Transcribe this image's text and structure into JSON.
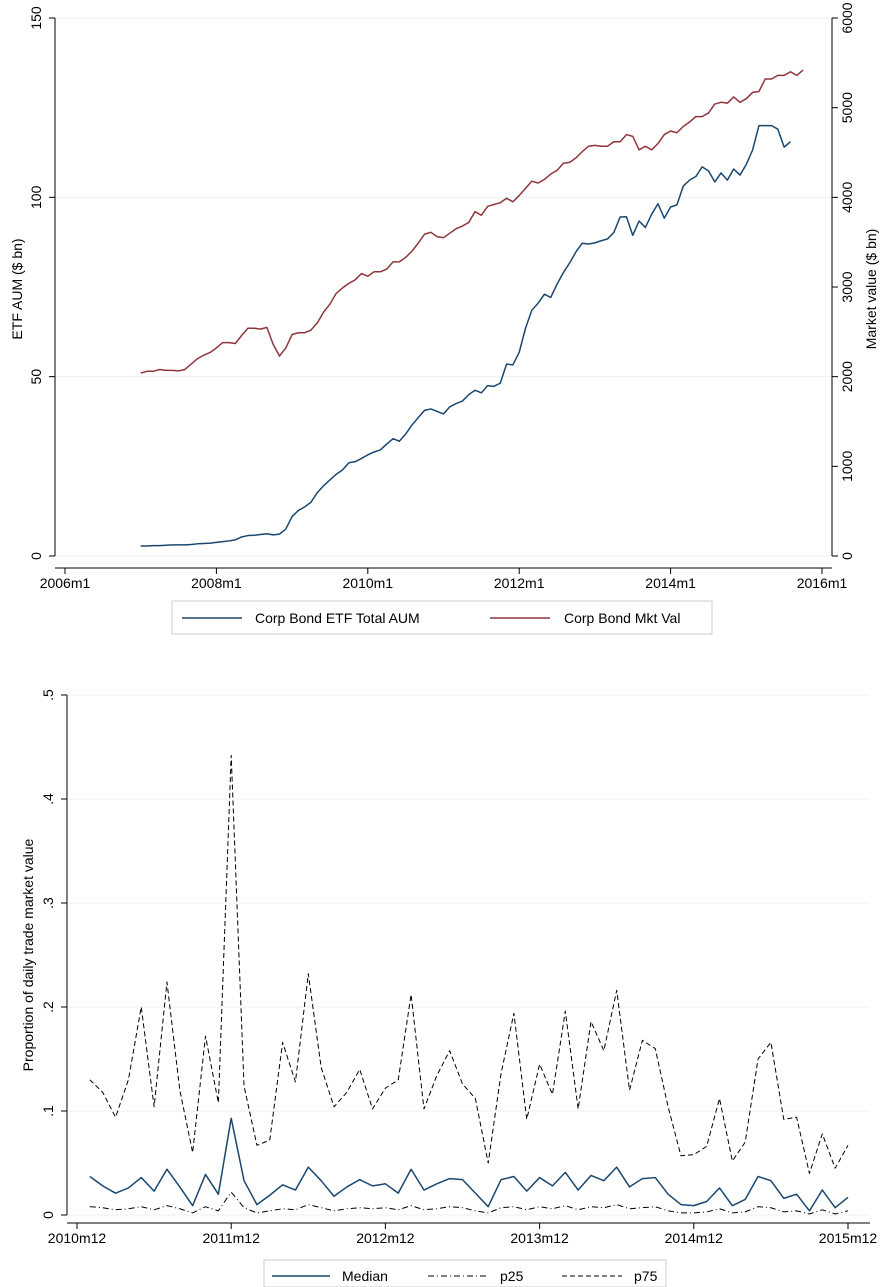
{
  "chart_data": [
    {
      "type": "line",
      "title": "",
      "xlabel": "",
      "ylabel": "ETF AUM ($ bn)",
      "y2label": "Market value ($ bn)",
      "xlim": [
        "2006m1",
        "2016m1"
      ],
      "ylim": [
        0,
        150
      ],
      "y2lim": [
        0,
        6000
      ],
      "xticks": [
        "2006m1",
        "2008m1",
        "2010m1",
        "2012m1",
        "2014m1",
        "2016m1"
      ],
      "yticks": [
        "0",
        "50",
        "100",
        "150"
      ],
      "y2ticks": [
        "0",
        "1000",
        "2000",
        "3000",
        "4000",
        "5000",
        "6000"
      ],
      "grid": true,
      "legend_position": "bottom",
      "x_start": "2007m1",
      "x_step": "1 month",
      "series": [
        {
          "name": "Corp Bond ETF Total AUM",
          "axis": "left",
          "color": "#1a476f",
          "values": [
            2.8,
            2.8,
            2.9,
            2.9,
            3.0,
            3.1,
            3.1,
            3.1,
            3.2,
            3.4,
            3.5,
            3.6,
            3.8,
            4.0,
            4.2,
            4.5,
            5.3,
            5.7,
            5.8,
            6.0,
            6.2,
            5.9,
            6.1,
            7.5,
            11.0,
            12.7,
            13.7,
            15.0,
            17.7,
            19.6,
            21.2,
            22.8,
            24.0,
            26.0,
            26.3,
            27.2,
            28.2,
            29.0,
            29.6,
            31.2,
            32.7,
            32.0,
            34.0,
            36.5,
            38.6,
            40.6,
            41.0,
            40.3,
            39.6,
            41.6,
            42.5,
            43.2,
            45.0,
            46.2,
            45.5,
            47.5,
            47.3,
            48.2,
            53.5,
            53.3,
            56.8,
            63.5,
            68.5,
            70.5,
            73.0,
            72.1,
            75.8,
            79.0,
            81.7,
            84.8,
            87.2,
            87.0,
            87.3,
            87.9,
            88.4,
            90.2,
            94.5,
            94.6,
            89.4,
            93.4,
            91.6,
            95.3,
            98.2,
            94.2,
            97.3,
            97.9,
            103.1,
            104.8,
            105.8,
            108.5,
            107.4,
            104.3,
            106.8,
            104.8,
            107.9,
            106.2,
            109.2,
            113.2,
            120.0,
            120.0,
            120.0,
            119.0,
            114.0,
            115.5
          ]
        },
        {
          "name": "Corp Bond Mkt Val",
          "axis": "right",
          "color": "#90353b",
          "values": [
            2040,
            2060,
            2060,
            2080,
            2070,
            2070,
            2065,
            2080,
            2140,
            2200,
            2240,
            2270,
            2320,
            2380,
            2380,
            2370,
            2460,
            2540,
            2540,
            2530,
            2550,
            2360,
            2230,
            2320,
            2470,
            2490,
            2490,
            2520,
            2600,
            2720,
            2810,
            2930,
            2990,
            3040,
            3080,
            3150,
            3120,
            3170,
            3170,
            3200,
            3280,
            3280,
            3330,
            3400,
            3490,
            3590,
            3610,
            3560,
            3550,
            3600,
            3650,
            3680,
            3720,
            3840,
            3800,
            3900,
            3920,
            3940,
            3990,
            3950,
            4020,
            4100,
            4180,
            4160,
            4200,
            4260,
            4300,
            4380,
            4390,
            4440,
            4510,
            4570,
            4580,
            4570,
            4570,
            4620,
            4620,
            4700,
            4680,
            4530,
            4570,
            4530,
            4600,
            4700,
            4740,
            4720,
            4790,
            4840,
            4900,
            4900,
            4940,
            5040,
            5060,
            5050,
            5120,
            5060,
            5100,
            5170,
            5180,
            5320,
            5320,
            5360,
            5360,
            5400,
            5360,
            5420
          ]
        }
      ]
    },
    {
      "type": "line",
      "title": "",
      "xlabel": "",
      "ylabel": "Proportion of daily trade market value",
      "xlim": [
        "2010m12",
        "2015m12"
      ],
      "ylim": [
        0,
        0.5
      ],
      "xticks": [
        "2010m12",
        "2011m12",
        "2012m12",
        "2013m12",
        "2014m12",
        "2015m12"
      ],
      "yticks": [
        "0",
        ".1",
        ".2",
        ".3",
        ".4",
        ".5"
      ],
      "grid": true,
      "legend_position": "bottom",
      "x_start": "2011m1",
      "x_step": "1 month",
      "series": [
        {
          "name": "Median",
          "color": "#1a476f",
          "dash": "solid",
          "values": [
            0.037,
            0.028,
            0.021,
            0.026,
            0.036,
            0.023,
            0.044,
            0.027,
            0.009,
            0.039,
            0.02,
            0.093,
            0.033,
            0.01,
            0.019,
            0.029,
            0.024,
            0.046,
            0.033,
            0.018,
            0.027,
            0.034,
            0.028,
            0.03,
            0.021,
            0.044,
            0.024,
            0.03,
            0.035,
            0.034,
            0.021,
            0.008,
            0.034,
            0.037,
            0.023,
            0.036,
            0.028,
            0.041,
            0.024,
            0.038,
            0.033,
            0.046,
            0.027,
            0.035,
            0.036,
            0.02,
            0.01,
            0.009,
            0.013,
            0.026,
            0.009,
            0.015,
            0.037,
            0.033,
            0.016,
            0.02,
            0.004,
            0.024,
            0.007,
            0.017
          ]
        },
        {
          "name": "p25",
          "color": "#000000",
          "dash": "dashdot",
          "values": [
            0.008,
            0.007,
            0.005,
            0.006,
            0.008,
            0.005,
            0.009,
            0.006,
            0.002,
            0.008,
            0.004,
            0.022,
            0.007,
            0.002,
            0.004,
            0.006,
            0.005,
            0.01,
            0.007,
            0.004,
            0.006,
            0.007,
            0.006,
            0.007,
            0.005,
            0.009,
            0.005,
            0.006,
            0.008,
            0.007,
            0.004,
            0.002,
            0.007,
            0.008,
            0.005,
            0.008,
            0.006,
            0.009,
            0.005,
            0.008,
            0.007,
            0.01,
            0.006,
            0.007,
            0.008,
            0.004,
            0.002,
            0.002,
            0.003,
            0.006,
            0.002,
            0.003,
            0.008,
            0.007,
            0.003,
            0.004,
            0.001,
            0.005,
            0.001,
            0.004
          ]
        },
        {
          "name": "p75",
          "color": "#000000",
          "dash": "dashed",
          "values": [
            0.13,
            0.118,
            0.094,
            0.13,
            0.2,
            0.104,
            0.224,
            0.12,
            0.06,
            0.172,
            0.108,
            0.442,
            0.124,
            0.067,
            0.072,
            0.166,
            0.128,
            0.232,
            0.142,
            0.104,
            0.118,
            0.14,
            0.102,
            0.122,
            0.13,
            0.212,
            0.102,
            0.134,
            0.158,
            0.126,
            0.112,
            0.05,
            0.136,
            0.194,
            0.092,
            0.145,
            0.116,
            0.196,
            0.102,
            0.186,
            0.158,
            0.216,
            0.12,
            0.168,
            0.16,
            0.104,
            0.057,
            0.058,
            0.066,
            0.112,
            0.052,
            0.07,
            0.15,
            0.166,
            0.092,
            0.094,
            0.04,
            0.078,
            0.045,
            0.067
          ]
        }
      ]
    }
  ]
}
